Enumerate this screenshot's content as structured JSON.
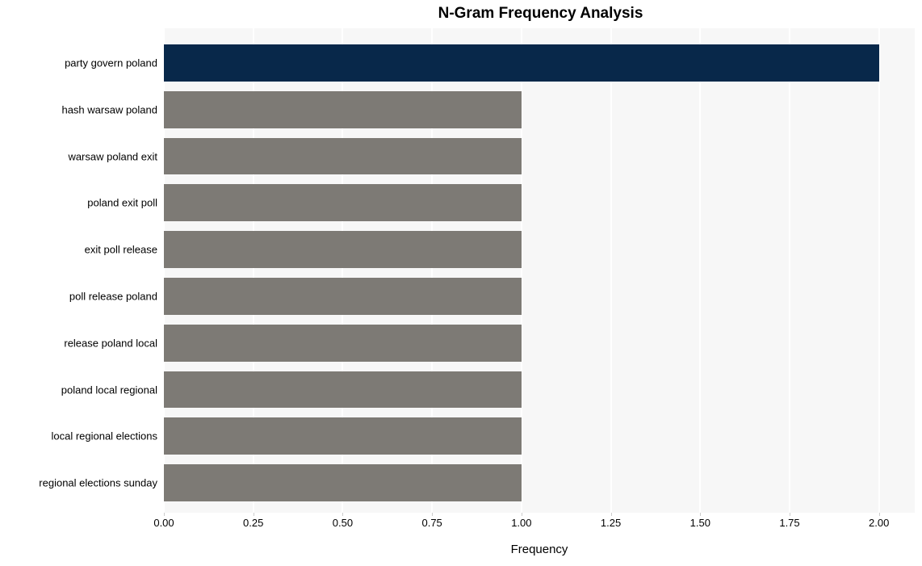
{
  "chart": {
    "type": "bar-horizontal",
    "title": "N-Gram Frequency Analysis",
    "title_fontsize": 19,
    "title_fontweight": "700",
    "xlabel": "Frequency",
    "xlabel_fontsize": 15,
    "ylabel_fontsize": 13,
    "tick_fontsize": 13,
    "background_color": "#ffffff",
    "plot_background_color": "#f7f7f7",
    "grid_color": "#ffffff",
    "bar_height_ratio": 0.79,
    "xlim": [
      0,
      2.1
    ],
    "xticks": [
      0.0,
      0.25,
      0.5,
      0.75,
      1.0,
      1.25,
      1.5,
      1.75,
      2.0
    ],
    "xtick_labels": [
      "0.00",
      "0.25",
      "0.50",
      "0.75",
      "1.00",
      "1.25",
      "1.50",
      "1.75",
      "2.00"
    ],
    "categories": [
      "party govern poland",
      "hash warsaw poland",
      "warsaw poland exit",
      "poland exit poll",
      "exit poll release",
      "poll release poland",
      "release poland local",
      "poland local regional",
      "local regional elections",
      "regional elections sunday"
    ],
    "values": [
      2,
      1,
      1,
      1,
      1,
      1,
      1,
      1,
      1,
      1
    ],
    "bar_colors": [
      "#08284a",
      "#7d7a75",
      "#7d7a75",
      "#7d7a75",
      "#7d7a75",
      "#7d7a75",
      "#7d7a75",
      "#7d7a75",
      "#7d7a75",
      "#7d7a75"
    ]
  }
}
